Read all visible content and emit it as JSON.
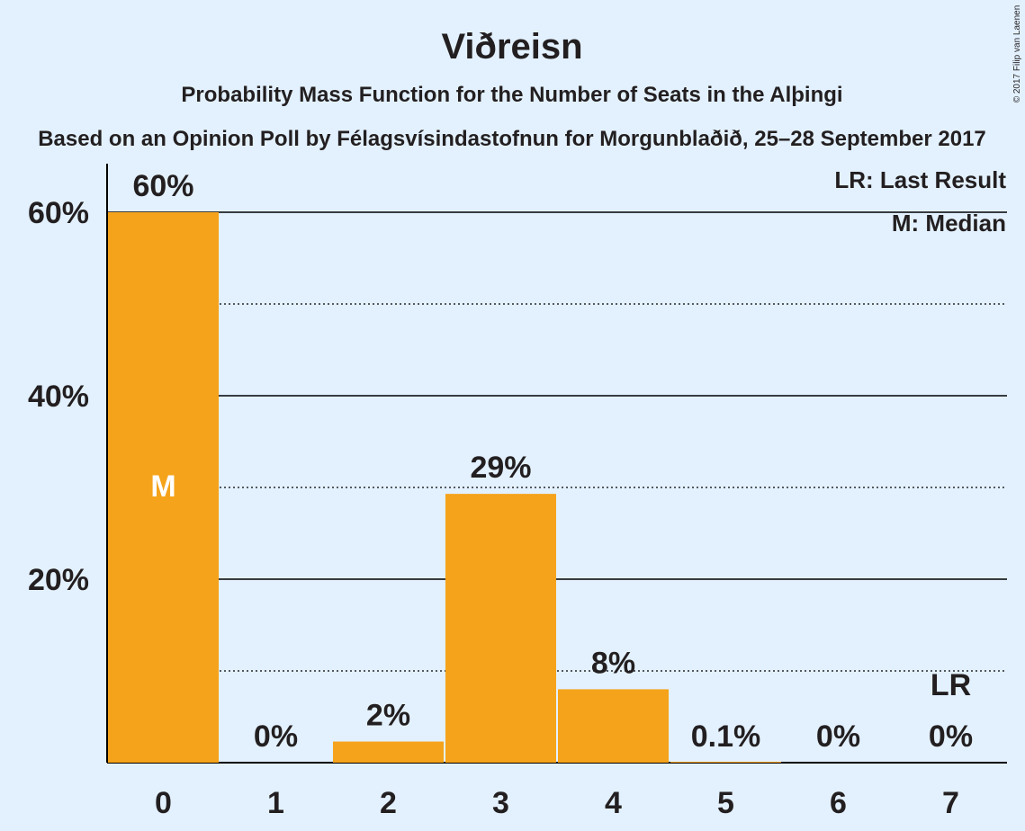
{
  "chart_data": {
    "type": "bar",
    "title": "Viðreisn",
    "subtitle": "Probability Mass Function for the Number of Seats in the Alþingi",
    "source": "Based on an Opinion Poll by Félagsvísindastofnun for Morgunblaðið, 25–28 September 2017",
    "copyright": "© 2017 Filip van Laenen",
    "categories": [
      "0",
      "1",
      "2",
      "3",
      "4",
      "5",
      "6",
      "7"
    ],
    "values": [
      60,
      0,
      2.3,
      29.3,
      8,
      0.1,
      0,
      0
    ],
    "value_labels": [
      "60%",
      "0%",
      "2%",
      "29%",
      "8%",
      "0.1%",
      "0%",
      "0%"
    ],
    "ylim": [
      0,
      65
    ],
    "yticks": [
      20,
      40,
      60
    ],
    "ytick_labels": [
      "20%",
      "40%",
      "60%"
    ],
    "minor_gridlines": [
      10,
      30,
      50
    ],
    "median_index": 0,
    "median_mark": "M",
    "last_result_index": 7,
    "last_result_mark": "LR",
    "legend": [
      "LR: Last Result",
      "M: Median"
    ],
    "legend_position": "top-right",
    "bar_color": "#f5a31b",
    "background_color": "#e3f1ff"
  }
}
